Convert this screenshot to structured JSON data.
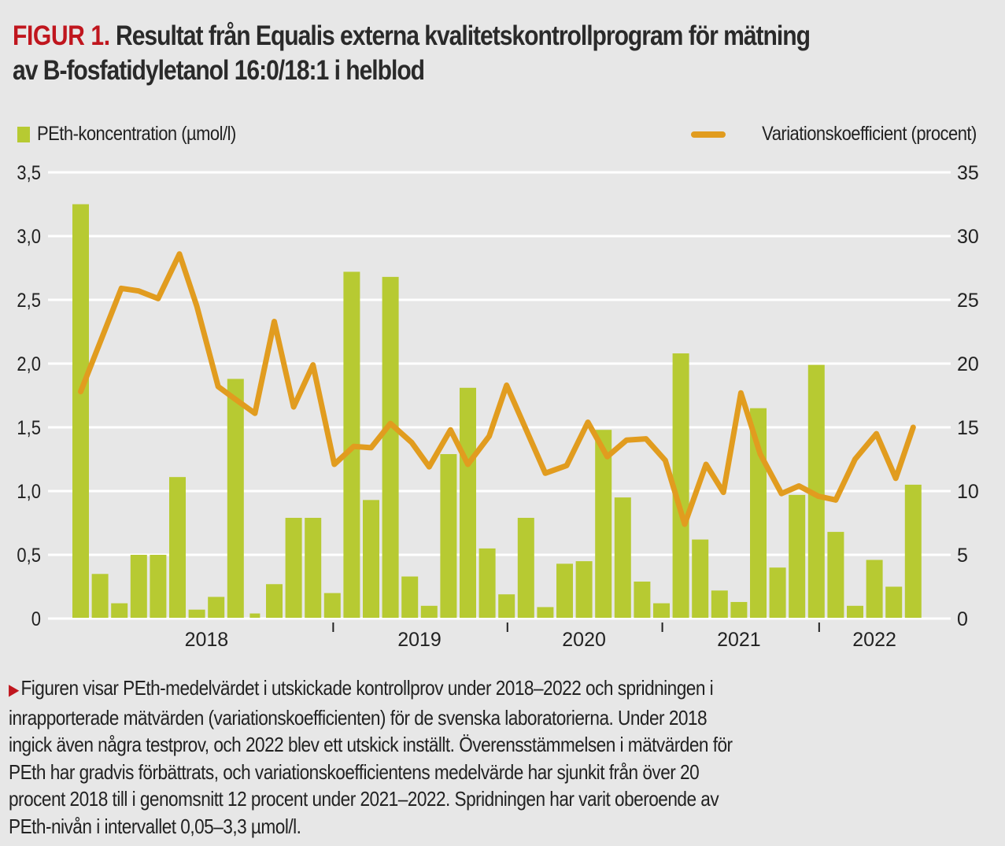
{
  "figure": {
    "label": "FIGUR 1.",
    "title_line1": "Resultat från Equalis externa kvalitetskontrollprogram för mätning",
    "title_line2": "av B-fosfatidyletanol 16:0/18:1 i helblod"
  },
  "legend": {
    "bars": "PEth-koncentration (µmol/l)",
    "line": "Variationskoefficient (procent)"
  },
  "colors": {
    "bars": "#b7ca32",
    "line": "#e19c1f",
    "accent": "#c0161e",
    "grid": "#ffffff",
    "background": "#e7e7e7"
  },
  "chart_data": {
    "type": "bar+line",
    "title": "Resultat från Equalis externa kvalitetskontrollprogram för mätning av B-fosfatidyletanol 16:0/18:1 i helblod",
    "grid": true,
    "legend_placement": "top",
    "left_axis": {
      "label": "PEth-koncentration (µmol/l)",
      "ylim": [
        0,
        3.5
      ],
      "ticks": [
        "0",
        "0,5",
        "1,0",
        "1,5",
        "2,0",
        "2,5",
        "3,0",
        "3,5"
      ],
      "tick_values": [
        0,
        0.5,
        1.0,
        1.5,
        2.0,
        2.5,
        3.0,
        3.5
      ]
    },
    "right_axis": {
      "label": "Variationskoefficient (procent)",
      "ylim": [
        0,
        35
      ],
      "ticks": [
        "0",
        "5",
        "10",
        "15",
        "20",
        "25",
        "30",
        "35"
      ],
      "tick_values": [
        0,
        5,
        10,
        15,
        20,
        25,
        30,
        35
      ]
    },
    "x_axis": {
      "year_labels": [
        {
          "label": "2018",
          "center_index": 6.5
        },
        {
          "label": "2019",
          "center_index": 17.5
        },
        {
          "label": "2020",
          "center_index": 26
        },
        {
          "label": "2021",
          "center_index": 34
        },
        {
          "label": "2022",
          "center_index": 41
        }
      ],
      "year_dividers_after_index": [
        12.8,
        21.8,
        29.8,
        37.9
      ]
    },
    "series": [
      {
        "name": "PEth-koncentration (µmol/l)",
        "type": "bar",
        "axis": "left",
        "values": [
          3.25,
          0.35,
          0.12,
          0.5,
          0.5,
          1.11,
          0.07,
          0.17,
          1.88,
          0.04,
          0.27,
          0.79,
          0.79,
          0.2,
          2.72,
          0.93,
          2.68,
          0.33,
          0.1,
          1.29,
          1.81,
          0.55,
          0.19,
          0.79,
          0.09,
          0.43,
          0.45,
          1.48,
          0.95,
          0.29,
          0.12,
          2.08,
          0.62,
          0.22,
          0.13,
          1.65,
          0.4,
          0.97,
          1.99,
          0.68,
          0.1,
          0.46,
          0.25,
          1.05
        ],
        "narrow_indices": [
          9
        ]
      },
      {
        "name": "Variationskoefficient (procent)",
        "type": "line",
        "axis": "right",
        "x_index": [
          0,
          2.1,
          3.0,
          4.0,
          5.1,
          6.0,
          7.1,
          7.9,
          9.0,
          10.0,
          11.0,
          12.0,
          13.1,
          14.1,
          15.0,
          16.0,
          17.1,
          18.0,
          19.1,
          20.0,
          21.1,
          22.0,
          24.0,
          25.1,
          26.2,
          27.2,
          28.2,
          29.2,
          30.2,
          31.2,
          32.3,
          33.2,
          34.1,
          35.1,
          36.2,
          37.1,
          38.1,
          39.0,
          40.0,
          41.1,
          42.1,
          43.0
        ],
        "values": [
          17.8,
          25.9,
          25.7,
          25.1,
          28.6,
          24.5,
          18.2,
          17.3,
          16.1,
          23.3,
          16.6,
          19.9,
          12.1,
          13.5,
          13.4,
          15.3,
          13.8,
          11.9,
          14.8,
          12.1,
          14.3,
          18.3,
          11.4,
          12.0,
          15.4,
          12.7,
          14.0,
          14.1,
          12.4,
          7.4,
          12.1,
          9.9,
          17.7,
          12.9,
          9.8,
          10.4,
          9.6,
          9.3,
          12.5,
          14.5,
          11.0,
          15.0
        ]
      }
    ]
  },
  "caption": {
    "lines": [
      "Figuren visar PEth-medelvärdet i utskickade kontrollprov under 2018–2022 och spridningen i",
      "inrapporterade mätvärden (variationskoefficienten) för de svenska laboratorierna. Under 2018",
      "ingick även några testprov, och 2022 blev ett utskick inställt. Överensstämmelsen i mätvärden för",
      "PEth har gradvis förbättrats, och variationskoefficientens medelvärde har sjunkit från över 20",
      "procent 2018 till i genomsnitt 12 procent under 2021–2022. Spridningen har varit oberoende av",
      "PEth-nivån i intervallet 0,05–3,3 µmol/l."
    ]
  }
}
